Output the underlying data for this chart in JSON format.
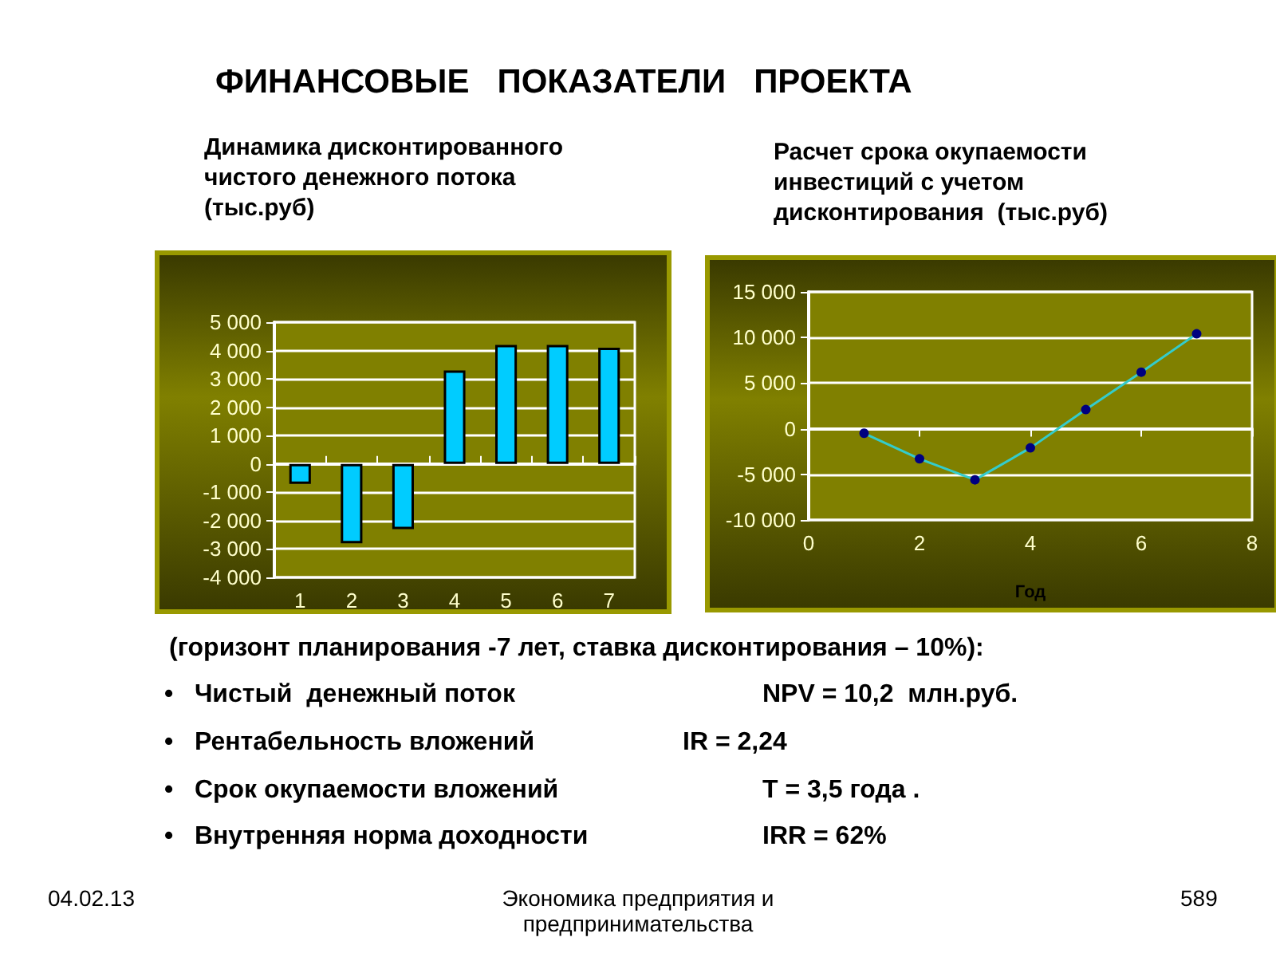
{
  "chart_data": [
    {
      "type": "bar",
      "title": "Динамика дисконтированного\nчистого денежного потока\n(тыс.руб)",
      "categories": [
        "1",
        "2",
        "3",
        "4",
        "5",
        "6",
        "7"
      ],
      "values": [
        -700,
        -2800,
        -2300,
        3300,
        4200,
        4200,
        4100
      ],
      "color": "#00ccff",
      "ylim": [
        -4000,
        5000
      ],
      "yticks": [
        {
          "value": -4000,
          "label": "-4 000"
        },
        {
          "value": -3000,
          "label": "-3 000"
        },
        {
          "value": -2000,
          "label": "-2 000"
        },
        {
          "value": -1000,
          "label": "-1 000"
        },
        0,
        {
          "value": 1000,
          "label": "1 000"
        },
        {
          "value": 2000,
          "label": "2 000"
        },
        {
          "value": 3000,
          "label": "3 000"
        },
        {
          "value": 4000,
          "label": "4 000"
        },
        {
          "value": 5000,
          "label": "5 000"
        }
      ],
      "grid": "y",
      "annotations": [
        "ФИНАНСОВЫЕ   ПОКАЗАТЕЛИ   ПРОЕКТА",
        "(горизонт планирования -7 лет, ставка дисконтирования – 10%):",
        "•   Чистый  денежный поток",
        "NPV = 10,2  млн.руб.",
        "•   Рентабельность вложений",
        "IR = 2,24",
        "•   Срок окупаемости вложений",
        "T = 3,5 года .",
        "•   Внутренняя норма доходности",
        "IRR = 62%",
        "04.02.13",
        "Экономика предприятия и\nпредпринимательства",
        "589"
      ]
    },
    {
      "type": "line",
      "title": "Расчет срока окупаемости\nинвестиций с учетом\nдисконтирования  (тыс.руб)",
      "xlabel": "Год",
      "x": [
        1,
        2,
        3,
        4,
        5,
        6,
        7
      ],
      "values": [
        -500,
        -3300,
        -5600,
        -2100,
        2100,
        6200,
        10400
      ],
      "color": "#33cccc",
      "marker": "circle",
      "xlim": [
        0,
        8
      ],
      "xticks": [
        0,
        2,
        4,
        6,
        8
      ],
      "ylim": [
        -10000,
        15000
      ],
      "yticks": [
        {
          "value": -10000,
          "label": "-10 000"
        },
        {
          "value": -5000,
          "label": "-5 000"
        },
        0,
        {
          "value": 5000,
          "label": "5 000"
        },
        {
          "value": 10000,
          "label": "10 000"
        },
        {
          "value": 15000,
          "label": "15 000"
        }
      ],
      "grid": "y"
    }
  ]
}
